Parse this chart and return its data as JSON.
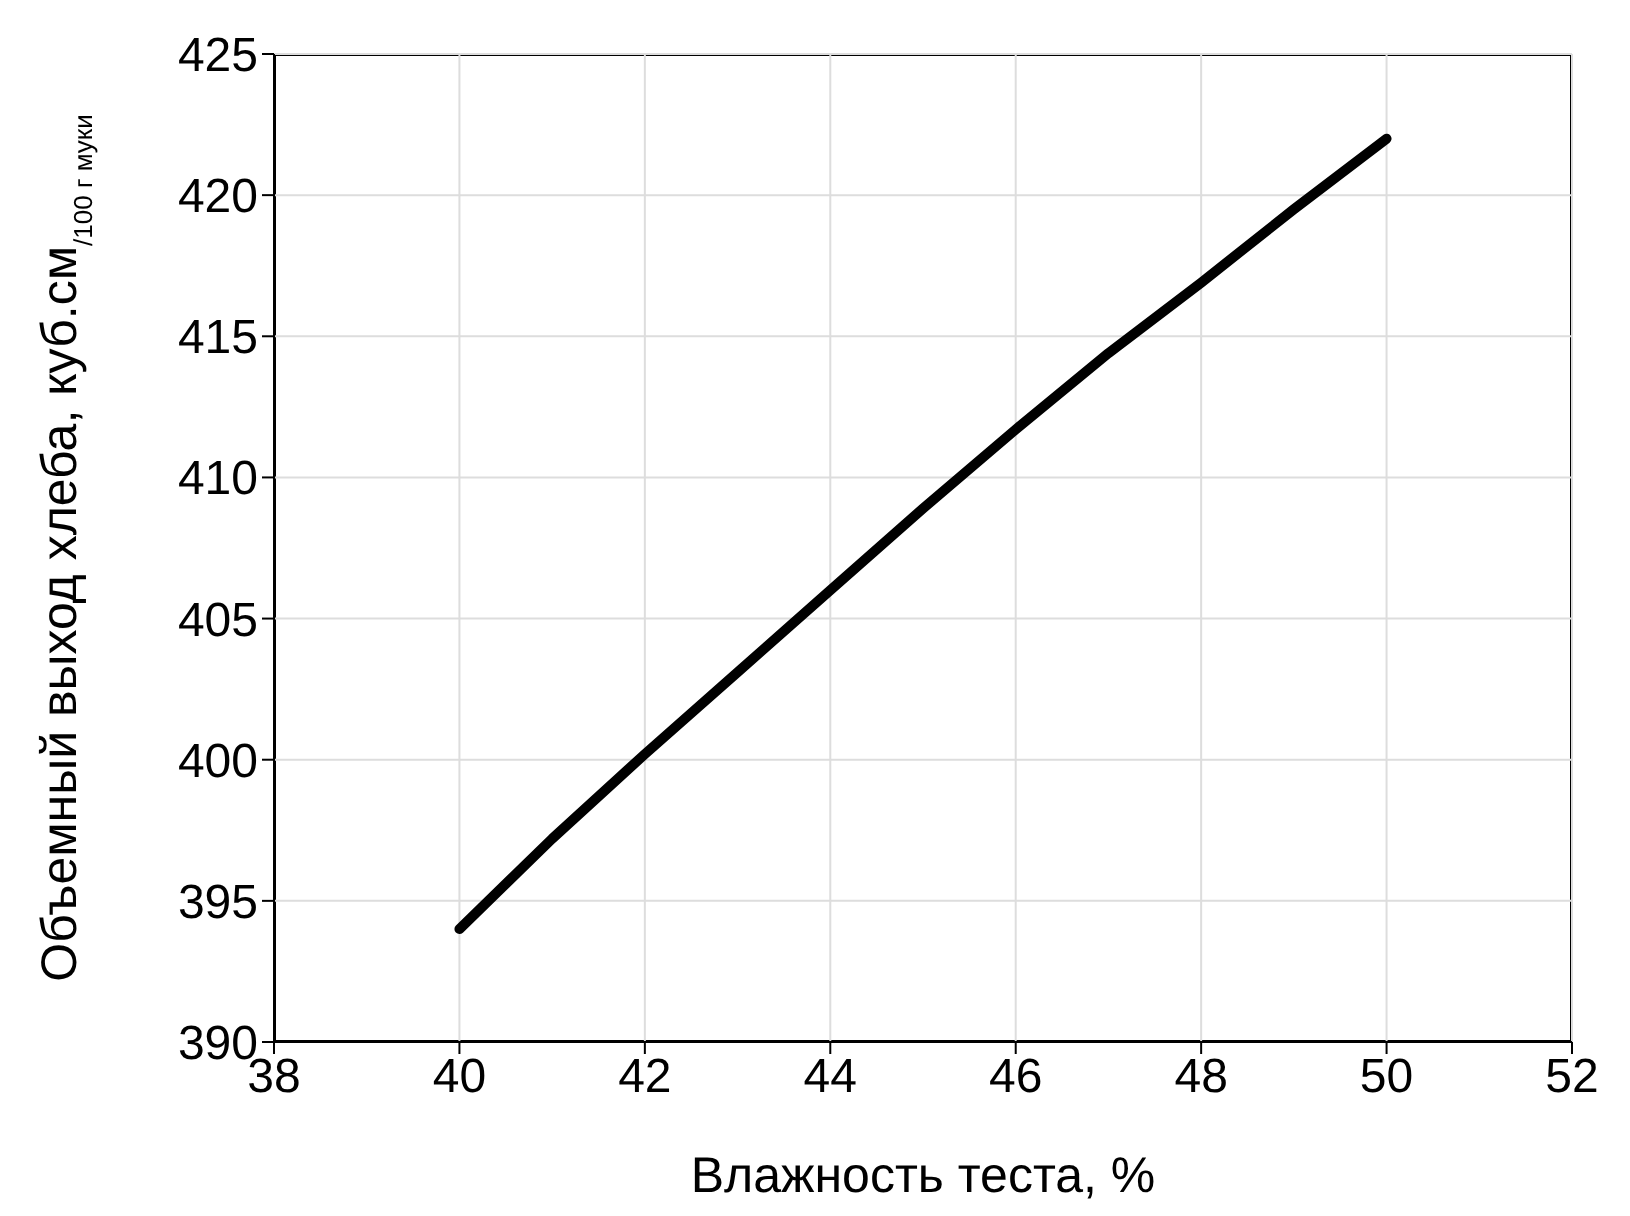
{
  "chart_data": {
    "type": "line",
    "xlabel": "Влажность теста, %",
    "ylabel": "Объемный выход хлеба, куб.см$_{/100 г муки}$",
    "x": [
      40,
      41,
      42,
      43,
      44,
      45,
      46,
      47,
      48,
      49,
      50
    ],
    "series": [
      {
        "color": "#000000",
        "values": [
          394,
          397.2,
          400.2,
          403.1,
          406.0,
          408.9,
          411.7,
          414.4,
          416.9,
          419.5,
          422
        ]
      }
    ],
    "xlim": [
      38,
      52
    ],
    "xticks": [
      38,
      40,
      42,
      44,
      46,
      48,
      50,
      52
    ],
    "ylim": [
      390,
      425
    ],
    "yticks": [
      390,
      395,
      400,
      405,
      410,
      415,
      420,
      425
    ],
    "grid": true,
    "marker": "none",
    "line_style": "solid"
  }
}
